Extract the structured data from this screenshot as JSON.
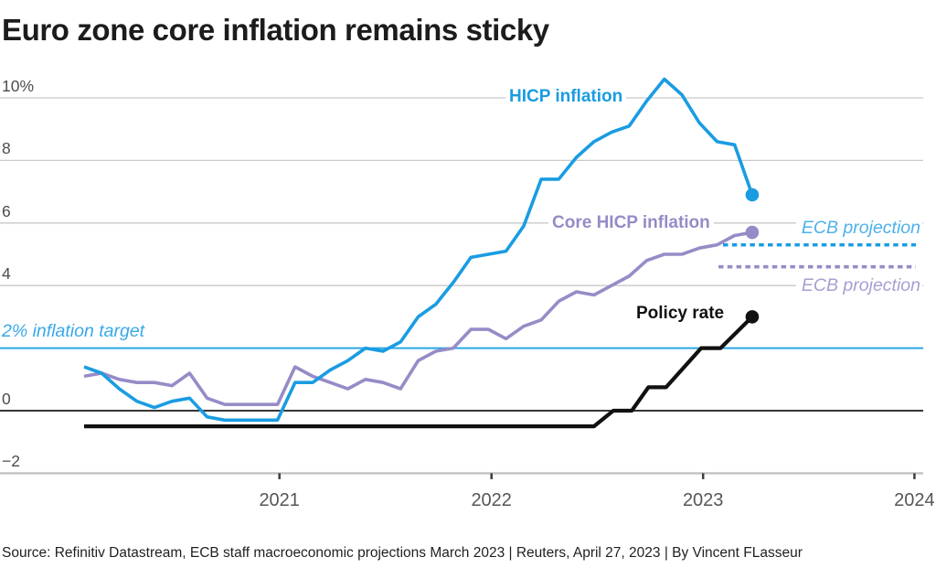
{
  "title": "Euro zone core inflation remains sticky",
  "source_line": "Source: Refinitiv Datastream, ECB staff macroeconomic projections March 2023 | Reuters, April 27, 2023 | By Vincent FLasseur",
  "colors": {
    "hicp_blue": "#1a9ce2",
    "core_purple": "#978bc7",
    "policy_black": "#111111",
    "target_line_blue": "#2ba7e5",
    "target_label_blue": "#3aa9e7",
    "proj_label_blue": "#4db1e9",
    "proj_label_purple": "#a89ed3",
    "gridline_gray": "#c9c9c9",
    "zero_line": "#1a1a1a",
    "baseline_gray": "#c2c2c2",
    "tick_dark": "#3d3d3d"
  },
  "chart_data": {
    "type": "line",
    "title": "Euro zone core inflation remains sticky",
    "xlabel": "",
    "ylabel": "percent",
    "grid": "horizontal",
    "legend_position": "inline-labels",
    "ylim": [
      -2.7,
      11.0
    ],
    "x_frequency": "monthly",
    "x_range": {
      "start": "2020-01",
      "end": "2023-03"
    },
    "months": [
      "2020-01",
      "2020-02",
      "2020-03",
      "2020-04",
      "2020-05",
      "2020-06",
      "2020-07",
      "2020-08",
      "2020-09",
      "2020-10",
      "2020-11",
      "2020-12",
      "2021-01",
      "2021-02",
      "2021-03",
      "2021-04",
      "2021-05",
      "2021-06",
      "2021-07",
      "2021-08",
      "2021-09",
      "2021-10",
      "2021-11",
      "2021-12",
      "2022-01",
      "2022-02",
      "2022-03",
      "2022-04",
      "2022-05",
      "2022-06",
      "2022-07",
      "2022-08",
      "2022-09",
      "2022-10",
      "2022-11",
      "2022-12",
      "2023-01",
      "2023-02",
      "2023-03"
    ],
    "x_tick_labels": [
      "2021",
      "2022",
      "2023",
      "2024"
    ],
    "y_ticks": [
      {
        "label": "10%",
        "v": 10
      },
      {
        "label": "8",
        "v": 8
      },
      {
        "label": "6",
        "v": 6
      },
      {
        "label": "4",
        "v": 4
      },
      {
        "label": "0",
        "v": 0
      },
      {
        "label": "−2",
        "v": -2
      }
    ],
    "series": [
      {
        "name": "HICP inflation",
        "unit": "% yoy",
        "values": [
          1.4,
          1.2,
          0.7,
          0.3,
          0.1,
          0.3,
          0.4,
          -0.2,
          -0.3,
          -0.3,
          -0.3,
          -0.3,
          0.9,
          0.9,
          1.3,
          1.6,
          2.0,
          1.9,
          2.2,
          3.0,
          3.4,
          4.1,
          4.9,
          5.0,
          5.1,
          5.9,
          7.4,
          7.4,
          8.1,
          8.6,
          8.9,
          9.1,
          9.9,
          10.6,
          10.1,
          9.2,
          8.6,
          8.5,
          6.9
        ],
        "end_value": 6.9
      },
      {
        "name": "Core HICP inflation",
        "unit": "% yoy",
        "values": [
          1.1,
          1.2,
          1.0,
          0.9,
          0.9,
          0.8,
          1.2,
          0.4,
          0.2,
          0.2,
          0.2,
          0.2,
          1.4,
          1.1,
          0.9,
          0.7,
          1.0,
          0.9,
          0.7,
          1.6,
          1.9,
          2.0,
          2.6,
          2.6,
          2.3,
          2.7,
          2.9,
          3.5,
          3.8,
          3.7,
          4.0,
          4.3,
          4.8,
          5.0,
          5.0,
          5.2,
          5.3,
          5.6,
          5.7
        ],
        "end_value": 5.7
      },
      {
        "name": "Policy rate",
        "unit": "%",
        "step_points_t_v": [
          [
            0,
            -0.5
          ],
          [
            29,
            -0.5
          ],
          [
            30.1,
            0.0
          ],
          [
            31.15,
            0.0
          ],
          [
            32.1,
            0.75
          ],
          [
            33.1,
            0.75
          ],
          [
            35.1,
            2.0
          ],
          [
            36.2,
            2.0
          ],
          [
            38,
            3.0
          ]
        ],
        "plateau_levels": [
          -0.5,
          0.0,
          0.75,
          2.0,
          3.0
        ],
        "end_value": 3.0
      }
    ],
    "projections": [
      {
        "label": "ECB projection",
        "series": "HICP inflation",
        "value": 5.3
      },
      {
        "label": "ECB projection",
        "series": "Core HICP inflation",
        "value": 4.6
      }
    ],
    "annotations": {
      "target_label": "2% inflation target",
      "target_value": 2
    }
  }
}
